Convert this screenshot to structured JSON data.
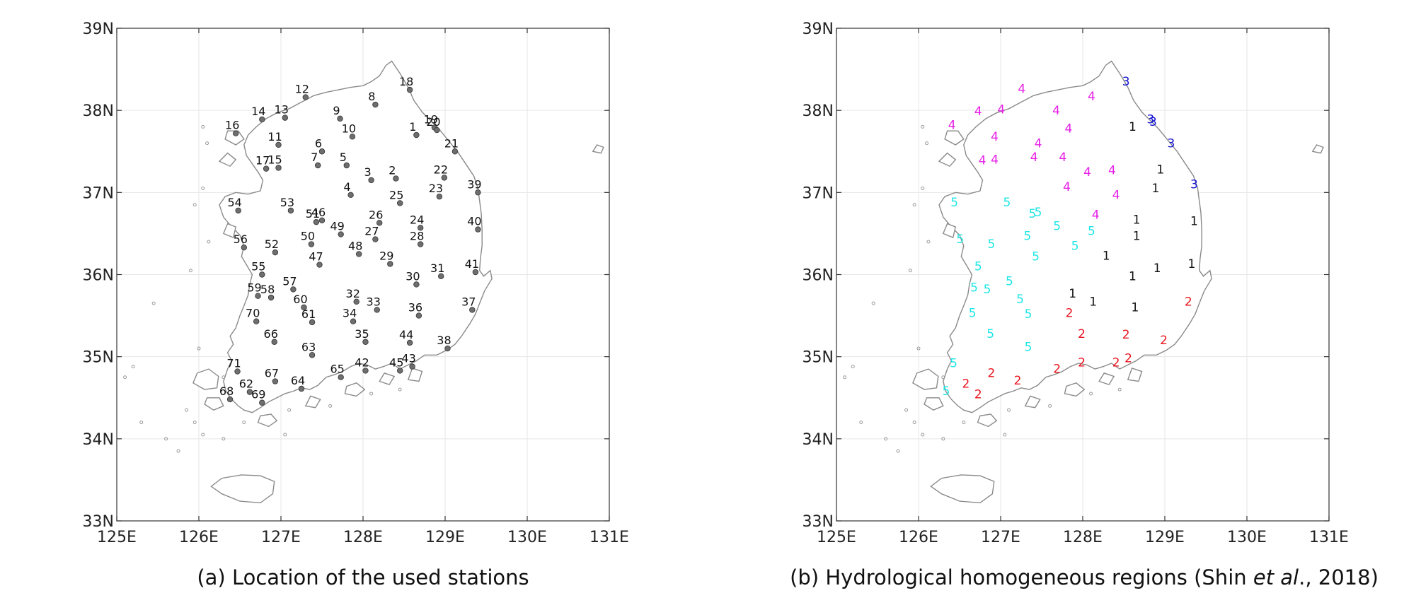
{
  "panels": [
    {
      "id": "a",
      "caption": "(a) Location of the used stations",
      "x_ticks": [
        "125E",
        "126E",
        "127E",
        "128E",
        "129E",
        "130E",
        "131E"
      ],
      "y_ticks": [
        "33N",
        "34N",
        "35N",
        "36N",
        "37N",
        "38N",
        "39N"
      ],
      "xlim": [
        125,
        131
      ],
      "ylim": [
        33,
        39
      ]
    },
    {
      "id": "b",
      "caption_pre": "(b) Hydrological homogeneous regions (Shin ",
      "caption_italic": "et al",
      "caption_post": "., 2018)",
      "x_ticks": [
        "125E",
        "126E",
        "127E",
        "128E",
        "129E",
        "130E",
        "131E"
      ],
      "y_ticks": [
        "33N",
        "34N",
        "35N",
        "36N",
        "37N",
        "38N",
        "39N"
      ],
      "xlim": [
        125,
        131
      ],
      "ylim": [
        33,
        39
      ]
    }
  ],
  "region_colors": {
    "1": "#111111",
    "2": "#e8141e",
    "3": "#1414d2",
    "4": "#e61ee6",
    "5": "#1ee6e6"
  },
  "chart_data": {
    "type": "scatter",
    "x_unit": "longitude (degrees E)",
    "y_unit": "latitude (degrees N)",
    "stations": [
      {
        "id": "1",
        "lon": 128.65,
        "lat": 37.7,
        "region": "1"
      },
      {
        "id": "2",
        "lon": 128.4,
        "lat": 37.17,
        "region": "4"
      },
      {
        "id": "3",
        "lon": 128.1,
        "lat": 37.15,
        "region": "4"
      },
      {
        "id": "4",
        "lon": 127.85,
        "lat": 36.97,
        "region": "4"
      },
      {
        "id": "5",
        "lon": 127.8,
        "lat": 37.33,
        "region": "4"
      },
      {
        "id": "6",
        "lon": 127.5,
        "lat": 37.5,
        "region": "4"
      },
      {
        "id": "7",
        "lon": 127.45,
        "lat": 37.33,
        "region": "4"
      },
      {
        "id": "8",
        "lon": 128.15,
        "lat": 38.07,
        "region": "4"
      },
      {
        "id": "9",
        "lon": 127.72,
        "lat": 37.9,
        "region": "4"
      },
      {
        "id": "10",
        "lon": 127.87,
        "lat": 37.68,
        "region": "4"
      },
      {
        "id": "11",
        "lon": 126.97,
        "lat": 37.58,
        "region": "4"
      },
      {
        "id": "12",
        "lon": 127.3,
        "lat": 38.16,
        "region": "4"
      },
      {
        "id": "13",
        "lon": 127.05,
        "lat": 37.91,
        "region": "4"
      },
      {
        "id": "14",
        "lon": 126.77,
        "lat": 37.89,
        "region": "4"
      },
      {
        "id": "15",
        "lon": 126.97,
        "lat": 37.3,
        "region": "4"
      },
      {
        "id": "16",
        "lon": 126.45,
        "lat": 37.72,
        "region": "4"
      },
      {
        "id": "17",
        "lon": 126.82,
        "lat": 37.29,
        "region": "4"
      },
      {
        "id": "18",
        "lon": 128.57,
        "lat": 38.25,
        "region": "3"
      },
      {
        "id": "19",
        "lon": 128.87,
        "lat": 37.79,
        "region": "3"
      },
      {
        "id": "20",
        "lon": 128.9,
        "lat": 37.76,
        "region": "3"
      },
      {
        "id": "21",
        "lon": 129.12,
        "lat": 37.5,
        "region": "3"
      },
      {
        "id": "22",
        "lon": 128.99,
        "lat": 37.18,
        "region": "1"
      },
      {
        "id": "23",
        "lon": 128.93,
        "lat": 36.95,
        "region": "1"
      },
      {
        "id": "24",
        "lon": 128.7,
        "lat": 36.57,
        "region": "1"
      },
      {
        "id": "25",
        "lon": 128.45,
        "lat": 36.87,
        "region": "4"
      },
      {
        "id": "26",
        "lon": 128.2,
        "lat": 36.63,
        "region": "4"
      },
      {
        "id": "27",
        "lon": 128.15,
        "lat": 36.43,
        "region": "5"
      },
      {
        "id": "28",
        "lon": 128.7,
        "lat": 36.37,
        "region": "1"
      },
      {
        "id": "29",
        "lon": 128.33,
        "lat": 36.13,
        "region": "1"
      },
      {
        "id": "30",
        "lon": 128.65,
        "lat": 35.88,
        "region": "1"
      },
      {
        "id": "31",
        "lon": 128.95,
        "lat": 35.98,
        "region": "1"
      },
      {
        "id": "32",
        "lon": 127.92,
        "lat": 35.67,
        "region": "1"
      },
      {
        "id": "33",
        "lon": 128.17,
        "lat": 35.57,
        "region": "1"
      },
      {
        "id": "34",
        "lon": 127.88,
        "lat": 35.43,
        "region": "2"
      },
      {
        "id": "35",
        "lon": 128.03,
        "lat": 35.18,
        "region": "2"
      },
      {
        "id": "36",
        "lon": 128.68,
        "lat": 35.5,
        "region": "1"
      },
      {
        "id": "37",
        "lon": 129.33,
        "lat": 35.57,
        "region": "2"
      },
      {
        "id": "38",
        "lon": 129.03,
        "lat": 35.1,
        "region": "2"
      },
      {
        "id": "39",
        "lon": 129.4,
        "lat": 37.0,
        "region": "3"
      },
      {
        "id": "40",
        "lon": 129.4,
        "lat": 36.55,
        "region": "1"
      },
      {
        "id": "41",
        "lon": 129.37,
        "lat": 36.03,
        "region": "1"
      },
      {
        "id": "42",
        "lon": 128.03,
        "lat": 34.83,
        "region": "2"
      },
      {
        "id": "43",
        "lon": 128.6,
        "lat": 34.88,
        "region": "2"
      },
      {
        "id": "44",
        "lon": 128.57,
        "lat": 35.17,
        "region": "2"
      },
      {
        "id": "45",
        "lon": 128.45,
        "lat": 34.83,
        "region": "2"
      },
      {
        "id": "46",
        "lon": 127.5,
        "lat": 36.66,
        "region": "5"
      },
      {
        "id": "47",
        "lon": 127.47,
        "lat": 36.12,
        "region": "5"
      },
      {
        "id": "48",
        "lon": 127.95,
        "lat": 36.25,
        "region": "5"
      },
      {
        "id": "49",
        "lon": 127.73,
        "lat": 36.49,
        "region": "5"
      },
      {
        "id": "50",
        "lon": 127.37,
        "lat": 36.37,
        "region": "5"
      },
      {
        "id": "51",
        "lon": 127.43,
        "lat": 36.64,
        "region": "5"
      },
      {
        "id": "52",
        "lon": 126.93,
        "lat": 36.27,
        "region": "5"
      },
      {
        "id": "53",
        "lon": 127.12,
        "lat": 36.78,
        "region": "5"
      },
      {
        "id": "54",
        "lon": 126.48,
        "lat": 36.78,
        "region": "5"
      },
      {
        "id": "55",
        "lon": 126.77,
        "lat": 36.0,
        "region": "5"
      },
      {
        "id": "56",
        "lon": 126.55,
        "lat": 36.33,
        "region": "5"
      },
      {
        "id": "57",
        "lon": 127.15,
        "lat": 35.82,
        "region": "5"
      },
      {
        "id": "58",
        "lon": 126.88,
        "lat": 35.72,
        "region": "5"
      },
      {
        "id": "59",
        "lon": 126.72,
        "lat": 35.74,
        "region": "5"
      },
      {
        "id": "60",
        "lon": 127.28,
        "lat": 35.6,
        "region": "5"
      },
      {
        "id": "61",
        "lon": 127.38,
        "lat": 35.42,
        "region": "5"
      },
      {
        "id": "62",
        "lon": 126.62,
        "lat": 34.57,
        "region": "2"
      },
      {
        "id": "63",
        "lon": 127.38,
        "lat": 35.02,
        "region": "5"
      },
      {
        "id": "64",
        "lon": 127.25,
        "lat": 34.61,
        "region": "2"
      },
      {
        "id": "65",
        "lon": 127.73,
        "lat": 34.75,
        "region": "2"
      },
      {
        "id": "66",
        "lon": 126.92,
        "lat": 35.18,
        "region": "5"
      },
      {
        "id": "67",
        "lon": 126.93,
        "lat": 34.7,
        "region": "2"
      },
      {
        "id": "68",
        "lon": 126.38,
        "lat": 34.48,
        "region": "5"
      },
      {
        "id": "69",
        "lon": 126.77,
        "lat": 34.44,
        "region": "2"
      },
      {
        "id": "70",
        "lon": 126.7,
        "lat": 35.43,
        "region": "5"
      },
      {
        "id": "71",
        "lon": 126.47,
        "lat": 34.82,
        "region": "5"
      }
    ]
  }
}
